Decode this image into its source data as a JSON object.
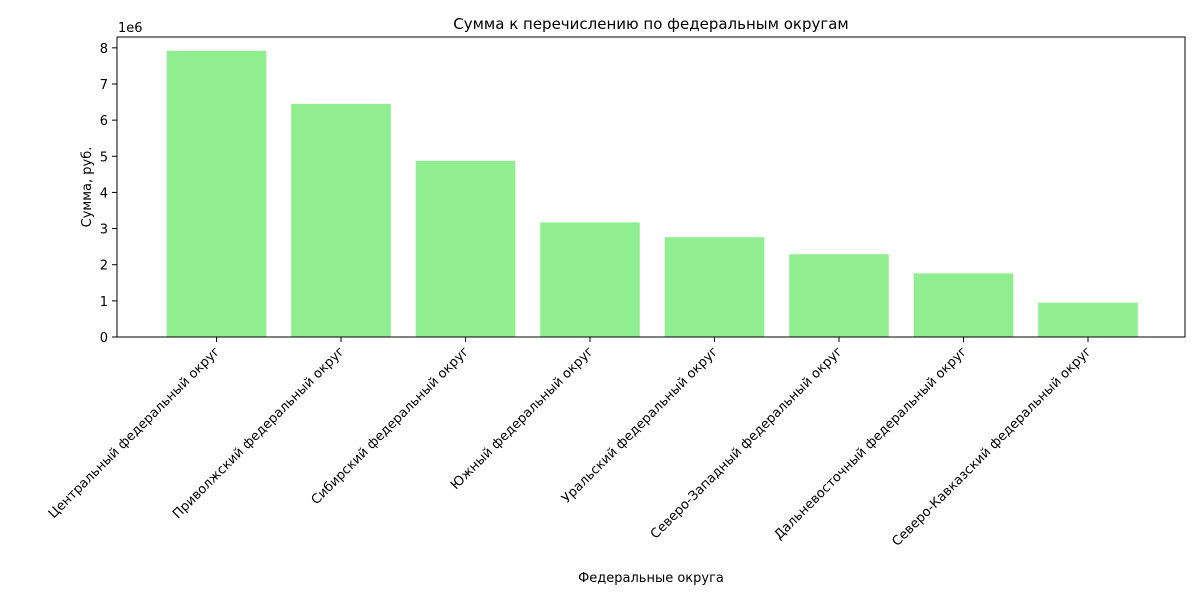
{
  "chart_data": {
    "type": "bar",
    "title": "Сумма к перечислению по федеральным округам",
    "xlabel": "Федеральные округа",
    "ylabel": "Сумма, руб.",
    "y_multiplier_label": "1e6",
    "y_multiplier": 1000000,
    "ylim": [
      0,
      8300000
    ],
    "yticks": [
      0,
      1000000,
      2000000,
      3000000,
      4000000,
      5000000,
      6000000,
      7000000,
      8000000
    ],
    "ytick_labels": [
      "0",
      "1",
      "2",
      "3",
      "4",
      "5",
      "6",
      "7",
      "8"
    ],
    "grid": false,
    "bar_color": "#90ee90",
    "categories": [
      "Центральный федеральный округ",
      "Приволжский федеральный округ",
      "Сибирский федеральный округ",
      "Южный федеральный округ",
      "Уральский федеральный округ",
      "Северо-Западный федеральный округ",
      "Дальневосточный федеральный округ",
      "Северо-Кавказский федеральный округ"
    ],
    "values": [
      7920000,
      6450000,
      4870000,
      3170000,
      2760000,
      2290000,
      1760000,
      950000
    ]
  }
}
